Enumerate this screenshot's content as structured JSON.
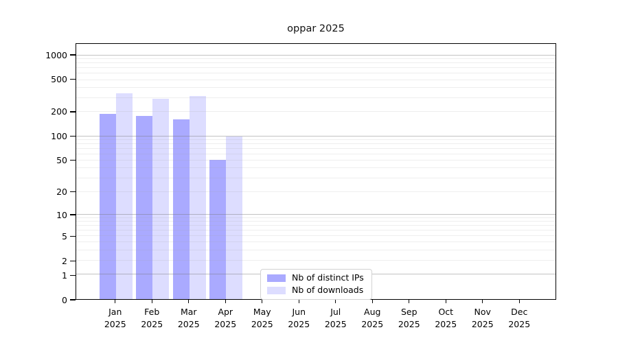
{
  "title": "oppar 2025",
  "legend": {
    "items": [
      {
        "label": "Nb of distinct IPs",
        "color": "#aaaaff"
      },
      {
        "label": "Nb of downloads",
        "color": "#ddddff"
      }
    ]
  },
  "colors": {
    "bar_distinct_ips": "#aaaaff",
    "bar_downloads": "#ddddff",
    "grid_major": "#c8c8c8",
    "grid_minor": "#e9e9e9",
    "axis": "#000000",
    "background": "#ffffff"
  },
  "chart_data": {
    "type": "bar",
    "title": "oppar 2025",
    "categories": [
      "Jan 2025",
      "Feb 2025",
      "Mar 2025",
      "Apr 2025",
      "May 2025",
      "Jun 2025",
      "Jul 2025",
      "Aug 2025",
      "Sep 2025",
      "Oct 2025",
      "Nov 2025",
      "Dec 2025"
    ],
    "month_labels": [
      {
        "month": "Jan",
        "year": "2025"
      },
      {
        "month": "Feb",
        "year": "2025"
      },
      {
        "month": "Mar",
        "year": "2025"
      },
      {
        "month": "Apr",
        "year": "2025"
      },
      {
        "month": "May",
        "year": "2025"
      },
      {
        "month": "Jun",
        "year": "2025"
      },
      {
        "month": "Jul",
        "year": "2025"
      },
      {
        "month": "Aug",
        "year": "2025"
      },
      {
        "month": "Sep",
        "year": "2025"
      },
      {
        "month": "Oct",
        "year": "2025"
      },
      {
        "month": "Nov",
        "year": "2025"
      },
      {
        "month": "Dec",
        "year": "2025"
      }
    ],
    "series": [
      {
        "name": "Nb of distinct IPs",
        "color": "#aaaaff",
        "values": [
          190,
          178,
          162,
          51,
          0,
          0,
          0,
          0,
          0,
          0,
          0,
          0
        ]
      },
      {
        "name": "Nb of downloads",
        "color": "#ddddff",
        "values": [
          345,
          290,
          318,
          100,
          0,
          0,
          0,
          0,
          0,
          0,
          0,
          0
        ]
      }
    ],
    "xlabel": "",
    "ylabel": "",
    "yscale": "log1p",
    "yticks": [
      1000,
      500,
      200,
      100,
      50,
      20,
      10,
      5,
      2,
      1,
      0
    ],
    "minor_grid_values": [
      2,
      3,
      4,
      5,
      6,
      7,
      8,
      9,
      20,
      30,
      40,
      50,
      60,
      70,
      80,
      90,
      200,
      300,
      400,
      500,
      600,
      700,
      800,
      900
    ],
    "major_grid_values": [
      1,
      10,
      100,
      1000
    ],
    "ylim": [
      0,
      1390
    ],
    "grid": "horizontal",
    "legend_position": "lower center"
  }
}
